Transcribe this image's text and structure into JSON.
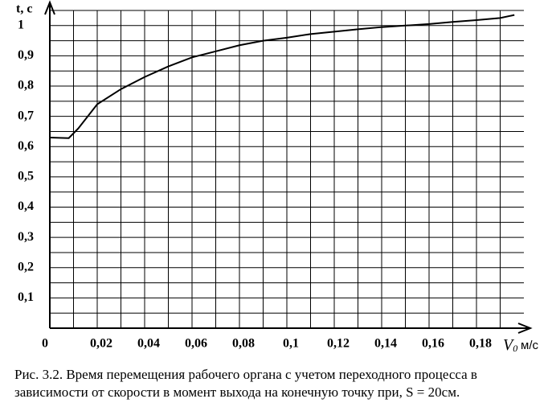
{
  "chart_data": {
    "type": "line",
    "y_label": "t, c",
    "x_label": "V",
    "x_label_sub": "0",
    "x_unit": "м/с",
    "x": [
      0,
      0.008,
      0.012,
      0.02,
      0.03,
      0.04,
      0.05,
      0.06,
      0.07,
      0.08,
      0.09,
      0.1,
      0.11,
      0.12,
      0.13,
      0.14,
      0.15,
      0.16,
      0.17,
      0.18,
      0.19,
      0.196
    ],
    "series": [
      {
        "color": "#000000",
        "values": [
          0.63,
          0.628,
          0.66,
          0.74,
          0.79,
          0.83,
          0.865,
          0.895,
          0.915,
          0.935,
          0.95,
          0.96,
          0.972,
          0.98,
          0.988,
          0.995,
          1.0,
          1.005,
          1.012,
          1.018,
          1.025,
          1.035
        ]
      }
    ],
    "xlim": [
      0,
      0.2
    ],
    "ylim": [
      0,
      1.05
    ],
    "xticks": [
      0,
      {
        "value": 0.02,
        "label": "0,02"
      },
      {
        "value": 0.04,
        "label": "0,04"
      },
      {
        "value": 0.06,
        "label": "0,06"
      },
      {
        "value": 0.08,
        "label": "0,08"
      },
      {
        "value": 0.1,
        "label": "0,1"
      },
      {
        "value": 0.12,
        "label": "0,12"
      },
      {
        "value": 0.14,
        "label": "0,14"
      },
      {
        "value": 0.16,
        "label": "0,16"
      },
      {
        "value": 0.18,
        "label": "0,18"
      }
    ],
    "yticks": [
      {
        "value": 0.1,
        "label": "0,1"
      },
      {
        "value": 0.2,
        "label": "0,2"
      },
      {
        "value": 0.3,
        "label": "0,3"
      },
      {
        "value": 0.4,
        "label": "0,4"
      },
      {
        "value": 0.5,
        "label": "0,5"
      },
      {
        "value": 0.6,
        "label": "0,6"
      },
      {
        "value": 0.7,
        "label": "0,7"
      },
      {
        "value": 0.8,
        "label": "0,8"
      },
      {
        "value": 0.9,
        "label": "0,9"
      },
      1
    ],
    "grid": true,
    "caption": [
      "Рис. 3.2. Время перемещения рабочего органа с учетом переходного процесса в",
      "зависимости от скорости в момент выхода на конечную точку при, S = 20см."
    ]
  }
}
